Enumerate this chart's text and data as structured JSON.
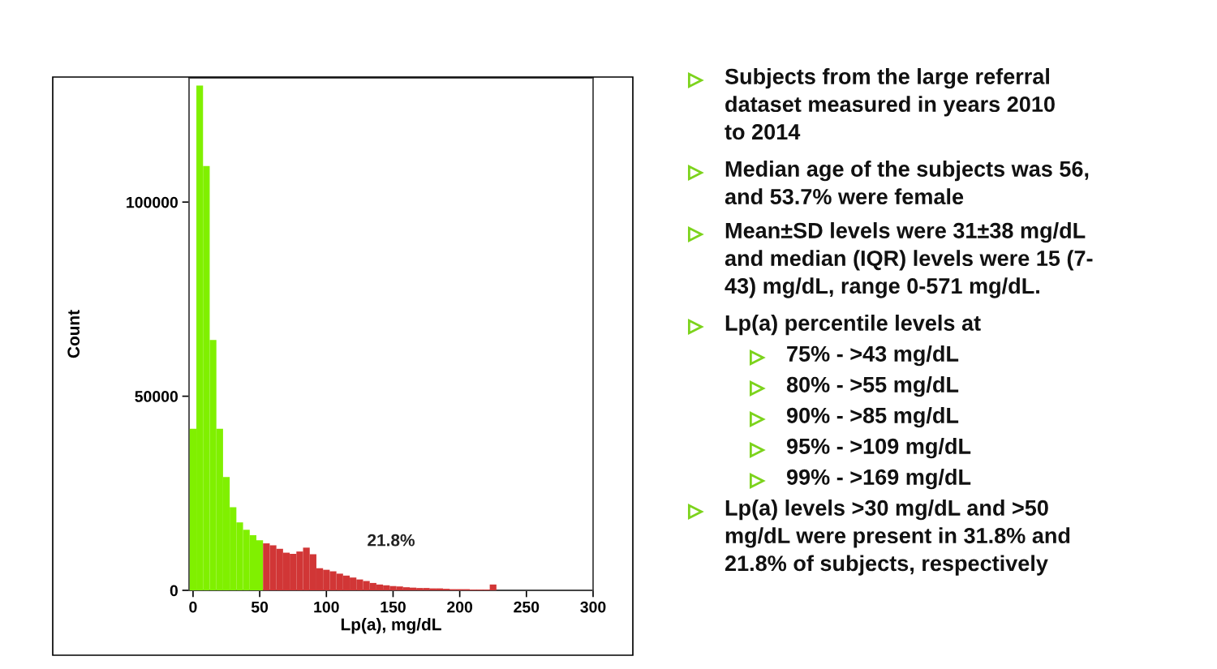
{
  "chart_data": [
    {
      "type": "histogram",
      "xlabel": "Lp(a), mg/dL",
      "ylabel": "Count",
      "bins": [
        -2.5,
        2.5,
        7.5,
        12.5,
        17.5,
        22.5,
        27.5,
        32.5,
        37.5,
        42.5,
        47.5,
        52.5,
        57.5,
        62.5,
        67.5,
        72.5,
        77.5,
        82.5,
        87.5,
        92.5,
        97.5,
        102.5,
        107.5,
        112.5,
        117.5,
        122.5,
        127.5,
        132.5,
        137.5,
        142.5,
        147.5,
        152.5,
        157.5,
        162.5,
        167.5,
        172.5,
        177.5,
        182.5,
        187.5,
        192.5,
        197.5,
        202.5,
        207.5,
        212.5,
        217.5,
        222.5,
        227.5
      ],
      "values": [
        41600,
        130000,
        109300,
        64500,
        41600,
        29200,
        21400,
        17500,
        15600,
        14200,
        12900,
        12100,
        11600,
        10700,
        9700,
        9400,
        10000,
        11000,
        9300,
        5700,
        5300,
        4900,
        4300,
        3800,
        3300,
        2800,
        2400,
        1900,
        1500,
        1300,
        1100,
        1000,
        800,
        700,
        600,
        600,
        500,
        500,
        400,
        300,
        300,
        300,
        200,
        200,
        200,
        1500
      ],
      "colors": [
        "#80f000",
        "#80f000",
        "#80f000",
        "#80f000",
        "#80f000",
        "#80f000",
        "#80f000",
        "#80f000",
        "#80f000",
        "#80f000",
        "#80f000",
        "#d13636",
        "#d13636",
        "#d13636",
        "#d13636",
        "#d13636",
        "#d13636",
        "#d13636",
        "#d13636",
        "#d13636",
        "#d13636",
        "#d13636",
        "#d13636",
        "#d13636",
        "#d13636",
        "#d13636",
        "#d13636",
        "#d13636",
        "#d13636",
        "#d13636",
        "#d13636",
        "#d13636",
        "#d13636",
        "#d13636",
        "#d13636",
        "#d13636",
        "#d13636",
        "#d13636",
        "#d13636",
        "#d13636",
        "#d13636",
        "#d13636",
        "#d13636",
        "#d13636",
        "#d13636",
        "#d13636"
      ],
      "xlim": [
        -3,
        300
      ],
      "xticks": [
        0,
        50,
        100,
        150,
        200,
        250,
        300
      ],
      "ylim": [
        0,
        132000
      ],
      "yticks": [
        0,
        50000,
        100000
      ],
      "annotations": [
        "21.8%"
      ]
    },
    {
      "type": "other",
      "annotations": [
        "Subjects from the large referral\ndataset measured in years 2010\nto 2014",
        "Median age of the subjects was 56,\nand 53.7% were female",
        "Mean±SD levels were 31±38 mg/dL\nand median (IQR) levels were 15 (7-\n43) mg/dL, range 0-571 mg/dL.",
        "Lp(a) percentile levels at"
      ]
    },
    {
      "type": "other",
      "annotations": [
        "75% - >43 mg/dL",
        "80% - >55 mg/dL",
        "90% - >85 mg/dL",
        "95% - >109 mg/dL",
        "99% - >169 mg/dL"
      ]
    },
    {
      "type": "other",
      "annotations": [
        "Lp(a) levels >30 mg/dL and >50\nmg/dL were present in 31.8% and\n21.8% of subjects, respectively"
      ]
    }
  ]
}
